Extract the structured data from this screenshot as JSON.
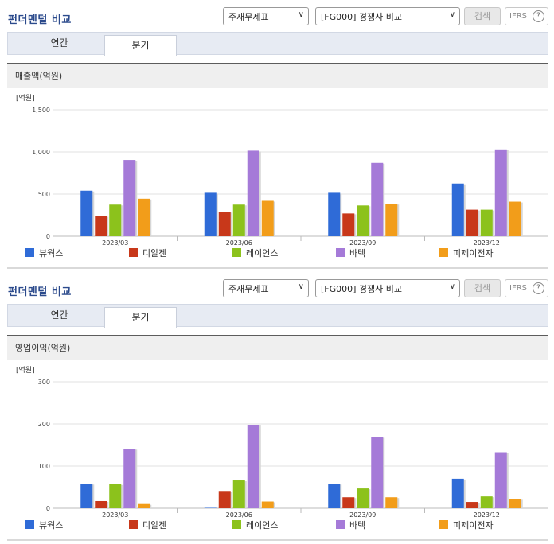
{
  "colors": {
    "accent": "#2b4a8c",
    "series": [
      "#2f6bd7",
      "#c8381a",
      "#8cc21c",
      "#a57ad8",
      "#f29d1a"
    ]
  },
  "legend": [
    "뷰웍스",
    "디알젠",
    "레이언스",
    "바텍",
    "피제이전자"
  ],
  "sections": [
    {
      "title": "펀더멘털 비교",
      "select1": "주재무제표",
      "select2": "[FG000] 경쟁사 비교",
      "search_label": "검색",
      "ifrs_label": "IFRS",
      "help_label": "?",
      "tabs": [
        "연간",
        "분기"
      ],
      "active_tab": 1,
      "subheader": "매출액(억원)"
    },
    {
      "title": "펀더멘털 비교",
      "select1": "주재무제표",
      "select2": "[FG000] 경쟁사 비교",
      "search_label": "검색",
      "ifrs_label": "IFRS",
      "help_label": "?",
      "tabs": [
        "연간",
        "분기"
      ],
      "active_tab": 1,
      "subheader": "영업이익(억원)"
    }
  ],
  "chart_data": [
    {
      "type": "bar",
      "title": "매출액(억원)",
      "unit_label": "[억원]",
      "categories": [
        "2023/03",
        "2023/06",
        "2023/09",
        "2023/12"
      ],
      "ylim": [
        0,
        1500
      ],
      "yticks": [
        0,
        500,
        1000,
        1500
      ],
      "ytick_labels": [
        "0",
        "500",
        "1,000",
        "1,500"
      ],
      "grid": true,
      "legend_position": "bottom",
      "series": [
        {
          "name": "뷰웍스",
          "values": [
            540,
            515,
            515,
            625
          ]
        },
        {
          "name": "디알젠",
          "values": [
            240,
            290,
            270,
            315
          ]
        },
        {
          "name": "레이언스",
          "values": [
            375,
            375,
            365,
            315
          ]
        },
        {
          "name": "바텍",
          "values": [
            905,
            1015,
            870,
            1030
          ]
        },
        {
          "name": "피제이전자",
          "values": [
            445,
            420,
            385,
            410
          ]
        }
      ]
    },
    {
      "type": "bar",
      "title": "영업이익(억원)",
      "unit_label": "[억원]",
      "categories": [
        "2023/03",
        "2023/06",
        "2023/09",
        "2023/12"
      ],
      "ylim": [
        0,
        300
      ],
      "yticks": [
        0,
        100,
        200,
        300
      ],
      "ytick_labels": [
        "0",
        "100",
        "200",
        "300"
      ],
      "grid": true,
      "legend_position": "bottom",
      "series": [
        {
          "name": "뷰웍스",
          "values": [
            58,
            1,
            58,
            70
          ]
        },
        {
          "name": "디알젠",
          "values": [
            17,
            41,
            26,
            15
          ]
        },
        {
          "name": "레이언스",
          "values": [
            57,
            66,
            47,
            28
          ]
        },
        {
          "name": "바텍",
          "values": [
            141,
            198,
            169,
            133
          ]
        },
        {
          "name": "피제이전자",
          "values": [
            10,
            16,
            26,
            22
          ]
        }
      ]
    }
  ]
}
